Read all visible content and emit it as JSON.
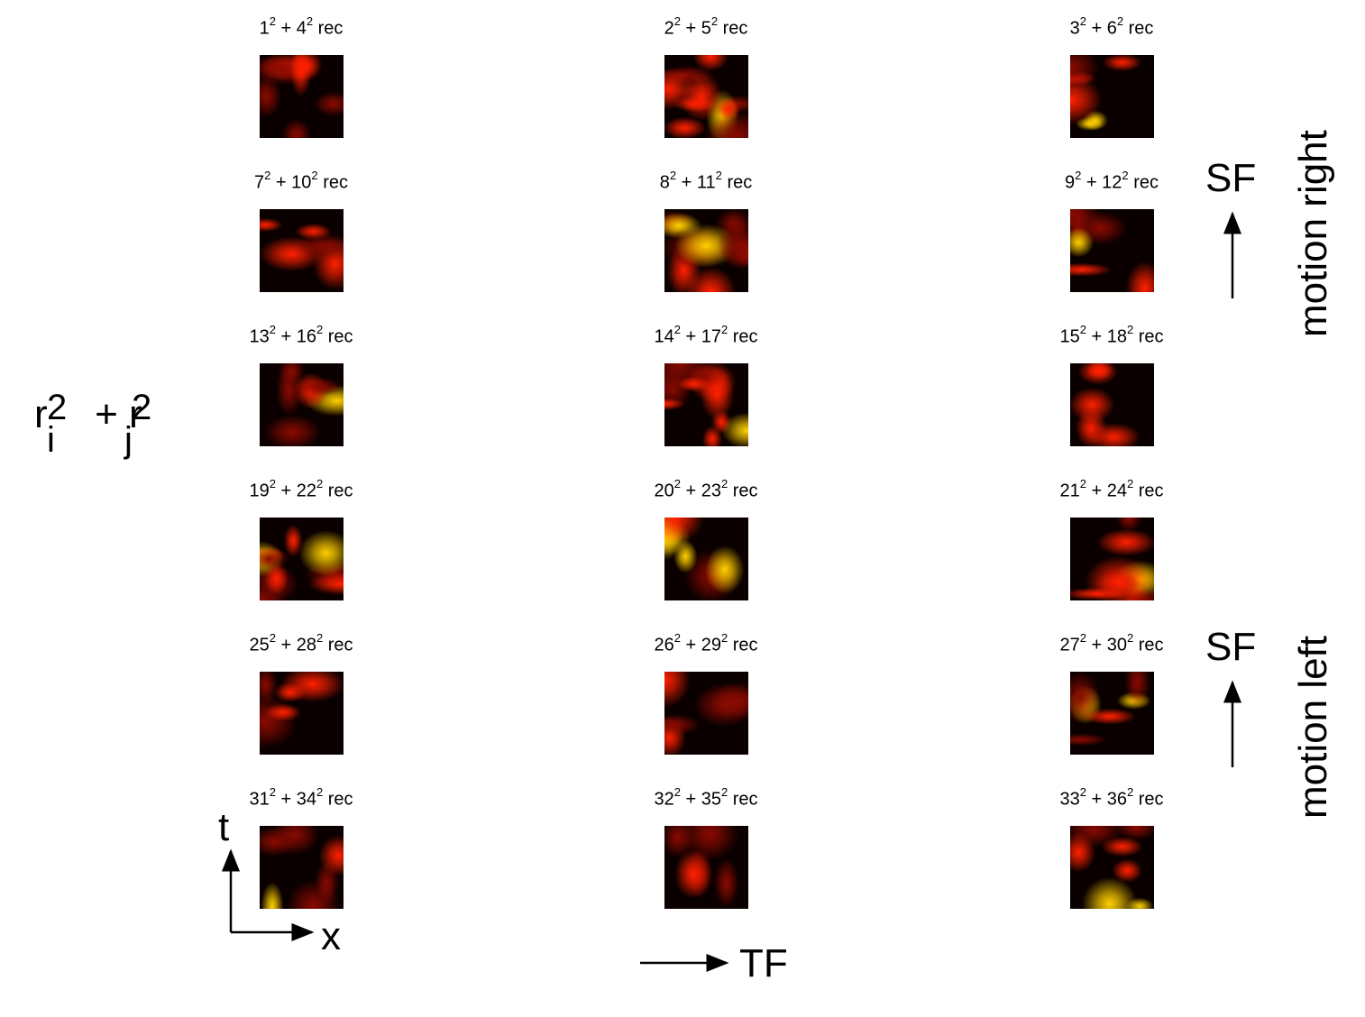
{
  "grid": [
    [
      "1",
      "4"
    ],
    [
      "2",
      "5"
    ],
    [
      "3",
      "6"
    ],
    [
      "7",
      "10"
    ],
    [
      "8",
      "11"
    ],
    [
      "9",
      "12"
    ],
    [
      "13",
      "16"
    ],
    [
      "14",
      "17"
    ],
    [
      "15",
      "18"
    ],
    [
      "19",
      "22"
    ],
    [
      "20",
      "23"
    ],
    [
      "21",
      "24"
    ],
    [
      "25",
      "28"
    ],
    [
      "26",
      "29"
    ],
    [
      "27",
      "30"
    ],
    [
      "31",
      "34"
    ],
    [
      "32",
      "35"
    ],
    [
      "33",
      "36"
    ]
  ],
  "label_text": {
    "exponent": "2",
    "plus": " + ",
    "suffix": " rec"
  },
  "formula": {
    "r1": "r",
    "r2": "r",
    "sub_i": "i",
    "sub_j": "j",
    "sup": "2",
    "plus": " + "
  },
  "axes": {
    "t": "t",
    "x": "x",
    "tf": "TF",
    "sf_top": "SF",
    "sf_bottom": "SF"
  },
  "side_labels": {
    "motion_right": "motion right",
    "motion_left": "motion left"
  },
  "colors": {
    "dark": "#0a0000",
    "mid": "#8a0a00",
    "bright": "#ff2000",
    "hot": "#ffd000"
  }
}
